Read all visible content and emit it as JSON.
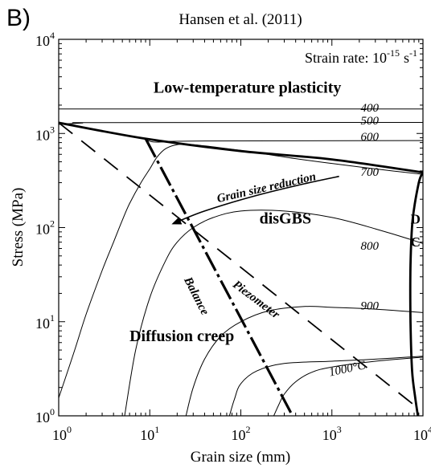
{
  "figure": {
    "panel_label": "B)",
    "title": "Hansen et al. (2011)"
  },
  "chart_data": {
    "type": "line",
    "title": "Hansen et al. (2011)",
    "xlabel": "Grain size (mm)",
    "ylabel": "Stress (MPa)",
    "xscale": "log",
    "yscale": "log",
    "xlim": [
      1,
      10000
    ],
    "ylim": [
      1,
      10000
    ],
    "grid": false,
    "legend": "none",
    "x_ticks": [
      {
        "value": 1,
        "base": "10",
        "exp": "0"
      },
      {
        "value": 10,
        "base": "10",
        "exp": "1"
      },
      {
        "value": 100,
        "base": "10",
        "exp": "2"
      },
      {
        "value": 1000,
        "base": "10",
        "exp": "3"
      },
      {
        "value": 10000,
        "base": "10",
        "exp": "4"
      }
    ],
    "y_ticks": [
      {
        "value": 1,
        "base": "10",
        "exp": "0"
      },
      {
        "value": 10,
        "base": "10",
        "exp": "1"
      },
      {
        "value": 100,
        "base": "10",
        "exp": "2"
      },
      {
        "value": 1000,
        "base": "10",
        "exp": "3"
      },
      {
        "value": 10000,
        "base": "10",
        "exp": "4"
      }
    ],
    "strain_rate": {
      "text": "Strain rate: 10",
      "exp": "-15",
      "unit": "s",
      "unit_exp": "-1"
    },
    "regions": [
      {
        "text": "Low-temperature plasticity",
        "x": 11,
        "y": 2700
      },
      {
        "text": "disGBS",
        "x": 160,
        "y": 110
      },
      {
        "text": "Diffusion creep",
        "x": 6,
        "y": 6.2
      },
      {
        "text": "D",
        "x": 8300,
        "y": 110
      },
      {
        "text": "C",
        "x": 8300,
        "y": 63
      }
    ],
    "isotherms": [
      {
        "label": "400",
        "label_at": [
          2600,
          1700
        ],
        "points": [
          [
            1,
            1820
          ],
          [
            10000,
            1820
          ]
        ]
      },
      {
        "label": "500",
        "label_at": [
          2600,
          1250
        ],
        "points": [
          [
            1,
            1250
          ],
          [
            1.8,
            1290
          ],
          [
            3,
            1305
          ],
          [
            10000,
            1310
          ]
        ]
      },
      {
        "label": "600",
        "label_at": [
          2600,
          840
        ],
        "points": [
          [
            8.5,
            880
          ],
          [
            9.5,
            840
          ],
          [
            11,
            812
          ],
          [
            15,
            815
          ],
          [
            30,
            830
          ],
          [
            10000,
            840
          ]
        ]
      },
      {
        "label": "700",
        "label_at": [
          2600,
          355
        ],
        "points": [
          [
            1,
            1.55
          ],
          [
            1.5,
            5
          ],
          [
            2,
            12
          ],
          [
            3,
            35
          ],
          [
            4,
            70
          ],
          [
            5,
            120
          ],
          [
            6,
            180
          ],
          [
            8,
            300
          ],
          [
            10,
            420
          ],
          [
            12,
            560
          ],
          [
            15,
            690
          ],
          [
            20,
            760
          ],
          [
            30,
            760
          ],
          [
            100,
            660
          ],
          [
            400,
            540
          ],
          [
            1000,
            480
          ],
          [
            3000,
            420
          ],
          [
            9500,
            370
          ]
        ]
      },
      {
        "label": "800",
        "label_at": [
          2600,
          58
        ],
        "points": [
          [
            5.3,
            1
          ],
          [
            7,
            5
          ],
          [
            10,
            18
          ],
          [
            15,
            45
          ],
          [
            20,
            70
          ],
          [
            30,
            100
          ],
          [
            50,
            128
          ],
          [
            100,
            150
          ],
          [
            300,
            150
          ],
          [
            1000,
            128
          ],
          [
            3000,
            97
          ],
          [
            9000,
            70
          ],
          [
            10000,
            66
          ]
        ]
      },
      {
        "label": "900",
        "label_at": [
          2600,
          13.5
        ],
        "points": [
          [
            25,
            1
          ],
          [
            30,
            2
          ],
          [
            40,
            4
          ],
          [
            60,
            7
          ],
          [
            100,
            10
          ],
          [
            200,
            13
          ],
          [
            500,
            14.5
          ],
          [
            1000,
            14.2
          ],
          [
            3000,
            13.6
          ],
          [
            10000,
            12.5
          ]
        ]
      },
      {
        "label": "1000°C",
        "label_at": [
          1500,
          2.9
        ],
        "points": [
          [
            75,
            1
          ],
          [
            85,
            1.5
          ],
          [
            100,
            2.2
          ],
          [
            150,
            3
          ],
          [
            300,
            3.6
          ],
          [
            1000,
            3.8
          ],
          [
            3000,
            4.0
          ],
          [
            10000,
            4.3
          ]
        ]
      },
      {
        "label": "",
        "label_at": null,
        "points": [
          [
            230,
            1
          ],
          [
            260,
            1.3
          ],
          [
            300,
            1.7
          ],
          [
            400,
            2.3
          ],
          [
            600,
            2.9
          ],
          [
            1000,
            3.3
          ],
          [
            3000,
            3.8
          ],
          [
            10000,
            4.2
          ]
        ]
      }
    ],
    "ltp_boundary": {
      "points": [
        [
          1,
          1300
        ],
        [
          9,
          880
        ],
        [
          100,
          650
        ],
        [
          1000,
          530
        ],
        [
          10000,
          385
        ]
      ]
    },
    "dc_boundary": {
      "points": [
        [
          10000,
          385
        ],
        [
          9000,
          300
        ],
        [
          7700,
          120
        ],
        [
          7300,
          40
        ],
        [
          7300,
          10
        ],
        [
          7600,
          3
        ],
        [
          8200,
          1.6
        ],
        [
          8800,
          1
        ]
      ]
    },
    "balance": {
      "label": "Balance",
      "label_at": [
        30,
        18
      ],
      "points": [
        [
          9,
          880
        ],
        [
          370,
          1
        ]
      ]
    },
    "piezometer": {
      "label": "Piezometer",
      "label_at": [
        140,
        16
      ],
      "points": [
        [
          1,
          1300
        ],
        [
          8000,
          1.3
        ]
      ]
    },
    "grain_size_reduction": {
      "label": "Grain size reduction",
      "label_at": [
        56,
        185
      ],
      "points": [
        [
          1200,
          350
        ],
        [
          500,
          292
        ],
        [
          150,
          220
        ],
        [
          40,
          150
        ],
        [
          18,
          110
        ]
      ]
    }
  }
}
